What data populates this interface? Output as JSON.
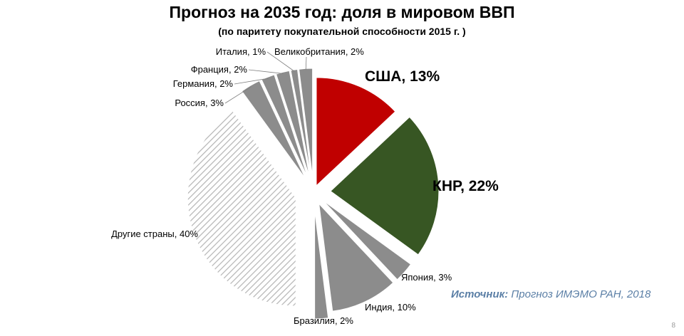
{
  "slide": {
    "title": "Прогноз на 2035 год:  доля в мировом ВВП",
    "subtitle": "(по паритету покупательной способности 2015 г. )",
    "source_label": "Источник:",
    "source_text": " Прогноз ИМЭМО РАН, 2018",
    "page_number": "8"
  },
  "chart_data": {
    "type": "pie",
    "title": "Прогноз на 2035 год:  доля в мировом ВВП",
    "subtitle": "(по паритету покупательной способности 2015 г. )",
    "unit": "%",
    "slices": [
      {
        "name": "США",
        "label": "США, 13%",
        "value": 13,
        "color": "#c00000",
        "highlight": true
      },
      {
        "name": "КНР",
        "label": "КНР, 22%",
        "value": 22,
        "color": "#375623",
        "highlight": true
      },
      {
        "name": "Япония",
        "label": "Япония, 3%",
        "value": 3,
        "color": "#8c8c8c"
      },
      {
        "name": "Индия",
        "label": "Индия, 10%",
        "value": 10,
        "color": "#8c8c8c"
      },
      {
        "name": "Бразилия",
        "label": "Бразилия, 2%",
        "value": 2,
        "color": "#8c8c8c"
      },
      {
        "name": "Другие страны",
        "label": "Другие страны, 40%",
        "value": 40,
        "color": "#d0d0d0",
        "pattern": "hatched"
      },
      {
        "name": "Россия",
        "label": "Россия, 3%",
        "value": 3,
        "color": "#8c8c8c"
      },
      {
        "name": "Германия",
        "label": "Германия, 2%",
        "value": 2,
        "color": "#8c8c8c"
      },
      {
        "name": "Франция",
        "label": "Франция, 2%",
        "value": 2,
        "color": "#8c8c8c"
      },
      {
        "name": "Италия",
        "label": "Италия, 1%",
        "value": 1,
        "color": "#8c8c8c"
      },
      {
        "name": "Великобритания",
        "label": "Великобритания, 2%",
        "value": 2,
        "color": "#8c8c8c"
      }
    ]
  }
}
